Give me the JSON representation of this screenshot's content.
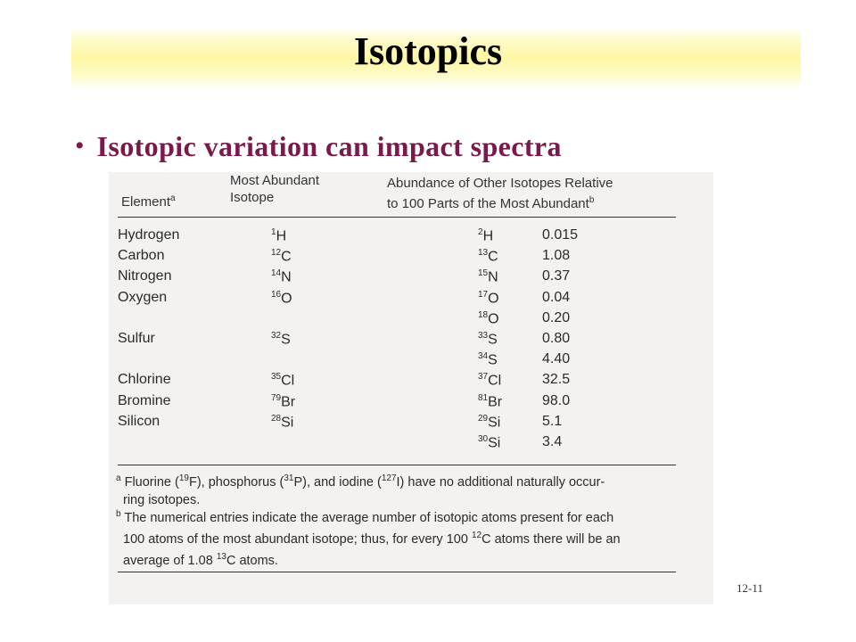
{
  "slide": {
    "title": "Isotopics",
    "bullet": "Isotopic variation can impact spectra",
    "page_number": "12-11"
  },
  "table": {
    "col1_header": "Element",
    "col1_footnote_mark": "a",
    "col2_header_line1": "Most Abundant",
    "col2_header_line2": "Isotope",
    "col3_header_line1": "Abundance of Other Isotopes Relative",
    "col3_header_line2": "to 100 Parts of the Most Abundant",
    "col3_footnote_mark": "b",
    "rows": [
      {
        "element": "Hydrogen",
        "main_mass": "1",
        "main_sym": "H",
        "iso_mass": "2",
        "iso_sym": "H",
        "value": "0.015"
      },
      {
        "element": "Carbon",
        "main_mass": "12",
        "main_sym": "C",
        "iso_mass": "13",
        "iso_sym": "C",
        "value": "1.08"
      },
      {
        "element": "Nitrogen",
        "main_mass": "14",
        "main_sym": "N",
        "iso_mass": "15",
        "iso_sym": "N",
        "value": "0.37"
      },
      {
        "element": "Oxygen",
        "main_mass": "16",
        "main_sym": "O",
        "iso_mass": "17",
        "iso_sym": "O",
        "value": "0.04"
      },
      {
        "element": "",
        "main_mass": "",
        "main_sym": "",
        "iso_mass": "18",
        "iso_sym": "O",
        "value": "0.20"
      },
      {
        "element": "Sulfur",
        "main_mass": "32",
        "main_sym": "S",
        "iso_mass": "33",
        "iso_sym": "S",
        "value": "0.80"
      },
      {
        "element": "",
        "main_mass": "",
        "main_sym": "",
        "iso_mass": "34",
        "iso_sym": "S",
        "value": "4.40"
      },
      {
        "element": "Chlorine",
        "main_mass": "35",
        "main_sym": "Cl",
        "iso_mass": "37",
        "iso_sym": "Cl",
        "value": "32.5"
      },
      {
        "element": "Bromine",
        "main_mass": "79",
        "main_sym": "Br",
        "iso_mass": "81",
        "iso_sym": "Br",
        "value": "98.0"
      },
      {
        "element": "Silicon",
        "main_mass": "28",
        "main_sym": "Si",
        "iso_mass": "29",
        "iso_sym": "Si",
        "value": "5.1"
      },
      {
        "element": "",
        "main_mass": "",
        "main_sym": "",
        "iso_mass": "30",
        "iso_sym": "Si",
        "value": "3.4"
      }
    ],
    "footnote_a_mark": "a",
    "footnote_a_parts": [
      "Fluorine (",
      "19",
      "F), phosphorus (",
      "31",
      "P), and iodine (",
      "127",
      "I) have no additional naturally occur-"
    ],
    "footnote_a_line2": "ring isotopes.",
    "footnote_b_mark": "b",
    "footnote_b_line1": "The numerical entries indicate the average number of isotopic atoms present for each",
    "footnote_b_line2_parts": [
      "100 atoms of the most abundant isotope; thus, for every 100 ",
      "12",
      "C atoms there will be an"
    ],
    "footnote_b_line3_parts": [
      "average of 1.08 ",
      "13",
      "C atoms."
    ]
  }
}
